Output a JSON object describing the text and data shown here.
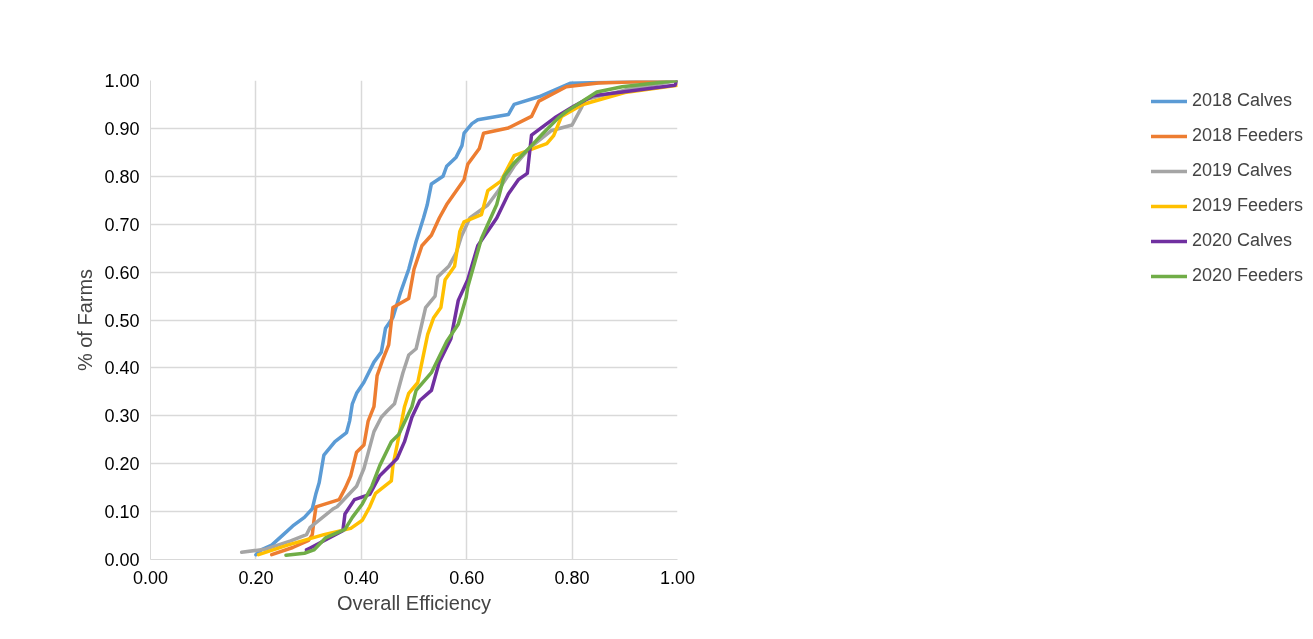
{
  "chart_data": {
    "type": "line",
    "xlabel": "Overall Efficiency",
    "ylabel": "% of Farms",
    "xlim": [
      0,
      1
    ],
    "ylim": [
      0,
      1
    ],
    "xticks": [
      {
        "value": 0,
        "label": "0.00"
      },
      {
        "value": 0.2,
        "label": "0.20"
      },
      {
        "value": 0.4,
        "label": "0.40"
      },
      {
        "value": 0.6,
        "label": "0.60"
      },
      {
        "value": 0.8,
        "label": "0.80"
      },
      {
        "value": 1,
        "label": "1.00"
      }
    ],
    "yticks": [
      {
        "value": 0,
        "label": "0.00"
      },
      {
        "value": 0.1,
        "label": "0.10"
      },
      {
        "value": 0.2,
        "label": "0.20"
      },
      {
        "value": 0.3,
        "label": "0.30"
      },
      {
        "value": 0.4,
        "label": "0.40"
      },
      {
        "value": 0.5,
        "label": "0.50"
      },
      {
        "value": 0.6,
        "label": "0.60"
      },
      {
        "value": 0.7,
        "label": "0.70"
      },
      {
        "value": 0.8,
        "label": "0.80"
      },
      {
        "value": 0.9,
        "label": "0.90"
      },
      {
        "value": 1,
        "label": "1.00"
      }
    ],
    "grid": true,
    "legend": "right",
    "marker": "none",
    "line_style": "solid",
    "series": [
      {
        "name": "2018 Calves",
        "color": "#5b9bd5",
        "x": [
          0.2,
          0.21,
          0.23,
          0.252,
          0.27,
          0.292,
          0.307,
          0.314,
          0.32,
          0.329,
          0.35,
          0.372,
          0.378,
          0.383,
          0.391,
          0.405,
          0.424,
          0.438,
          0.446,
          0.46,
          0.474,
          0.49,
          0.504,
          0.518,
          0.525,
          0.533,
          0.555,
          0.562,
          0.58,
          0.591,
          0.595,
          0.61,
          0.621,
          0.679,
          0.69,
          0.737,
          0.796,
          1.0
        ],
        "values": [
          0.01,
          0.02,
          0.03,
          0.052,
          0.07,
          0.088,
          0.106,
          0.138,
          0.16,
          0.218,
          0.246,
          0.265,
          0.29,
          0.325,
          0.347,
          0.37,
          0.412,
          0.433,
          0.483,
          0.505,
          0.556,
          0.606,
          0.664,
          0.713,
          0.74,
          0.784,
          0.8,
          0.821,
          0.84,
          0.864,
          0.89,
          0.91,
          0.918,
          0.929,
          0.95,
          0.966,
          0.994,
          1.0
        ]
      },
      {
        "name": "2018 Feeders",
        "color": "#ed7d31",
        "x": [
          0.23,
          0.27,
          0.3,
          0.307,
          0.31,
          0.314,
          0.358,
          0.37,
          0.38,
          0.391,
          0.405,
          0.413,
          0.424,
          0.43,
          0.441,
          0.452,
          0.46,
          0.49,
          0.5,
          0.515,
          0.533,
          0.548,
          0.562,
          0.595,
          0.602,
          0.624,
          0.632,
          0.679,
          0.723,
          0.737,
          0.789,
          0.85,
          1.0
        ],
        "values": [
          0.01,
          0.025,
          0.04,
          0.052,
          0.08,
          0.11,
          0.125,
          0.15,
          0.175,
          0.224,
          0.239,
          0.289,
          0.319,
          0.384,
          0.418,
          0.448,
          0.526,
          0.545,
          0.606,
          0.655,
          0.677,
          0.713,
          0.741,
          0.793,
          0.825,
          0.858,
          0.89,
          0.901,
          0.925,
          0.957,
          0.987,
          0.995,
          1.0
        ]
      },
      {
        "name": "2019 Calves",
        "color": "#a5a5a5",
        "x": [
          0.173,
          0.22,
          0.266,
          0.296,
          0.303,
          0.347,
          0.354,
          0.391,
          0.405,
          0.424,
          0.438,
          0.449,
          0.463,
          0.479,
          0.49,
          0.504,
          0.522,
          0.54,
          0.545,
          0.566,
          0.58,
          0.59,
          0.606,
          0.64,
          0.66,
          0.69,
          0.72,
          0.76,
          0.8,
          0.818,
          0.825,
          0.9,
          1.0
        ],
        "values": [
          0.015,
          0.022,
          0.039,
          0.052,
          0.067,
          0.106,
          0.11,
          0.153,
          0.19,
          0.267,
          0.297,
          0.31,
          0.325,
          0.39,
          0.427,
          0.44,
          0.526,
          0.55,
          0.59,
          0.612,
          0.64,
          0.675,
          0.713,
          0.74,
          0.77,
          0.821,
          0.86,
          0.895,
          0.907,
          0.944,
          0.96,
          0.98,
          1.0
        ]
      },
      {
        "name": "2019 Feeders",
        "color": "#ffc000",
        "x": [
          0.205,
          0.26,
          0.329,
          0.38,
          0.402,
          0.416,
          0.427,
          0.457,
          0.46,
          0.468,
          0.482,
          0.49,
          0.507,
          0.511,
          0.526,
          0.537,
          0.551,
          0.559,
          0.577,
          0.587,
          0.595,
          0.628,
          0.64,
          0.665,
          0.69,
          0.752,
          0.765,
          0.78,
          0.82,
          0.9,
          1.0
        ],
        "values": [
          0.01,
          0.03,
          0.052,
          0.065,
          0.082,
          0.11,
          0.138,
          0.164,
          0.196,
          0.239,
          0.319,
          0.347,
          0.369,
          0.39,
          0.47,
          0.504,
          0.526,
          0.584,
          0.612,
          0.685,
          0.705,
          0.72,
          0.77,
          0.79,
          0.843,
          0.868,
          0.885,
          0.925,
          0.95,
          0.975,
          0.99
        ]
      },
      {
        "name": "2020 Calves",
        "color": "#7030a0",
        "x": [
          0.296,
          0.303,
          0.365,
          0.369,
          0.387,
          0.416,
          0.435,
          0.468,
          0.482,
          0.496,
          0.511,
          0.533,
          0.548,
          0.57,
          0.584,
          0.602,
          0.621,
          0.657,
          0.679,
          0.698,
          0.715,
          0.723,
          0.767,
          0.803,
          0.84,
          0.995,
          1.0
        ],
        "values": [
          0.02,
          0.024,
          0.06,
          0.095,
          0.125,
          0.136,
          0.175,
          0.211,
          0.246,
          0.297,
          0.332,
          0.353,
          0.412,
          0.461,
          0.541,
          0.584,
          0.655,
          0.713,
          0.763,
          0.793,
          0.806,
          0.886,
          0.922,
          0.946,
          0.968,
          0.99,
          1.0
        ]
      },
      {
        "name": "2020 Feeders",
        "color": "#70ad47",
        "x": [
          0.257,
          0.292,
          0.31,
          0.332,
          0.369,
          0.383,
          0.402,
          0.42,
          0.435,
          0.457,
          0.471,
          0.496,
          0.504,
          0.533,
          0.562,
          0.584,
          0.599,
          0.602,
          0.628,
          0.657,
          0.671,
          0.69,
          0.723,
          0.745,
          0.774,
          0.789,
          0.847,
          0.895,
          1.0
        ],
        "values": [
          0.009,
          0.013,
          0.02,
          0.045,
          0.063,
          0.088,
          0.116,
          0.153,
          0.196,
          0.246,
          0.261,
          0.319,
          0.353,
          0.39,
          0.455,
          0.491,
          0.547,
          0.569,
          0.67,
          0.741,
          0.8,
          0.828,
          0.864,
          0.89,
          0.922,
          0.935,
          0.976,
          0.987,
          1.0
        ]
      }
    ]
  }
}
